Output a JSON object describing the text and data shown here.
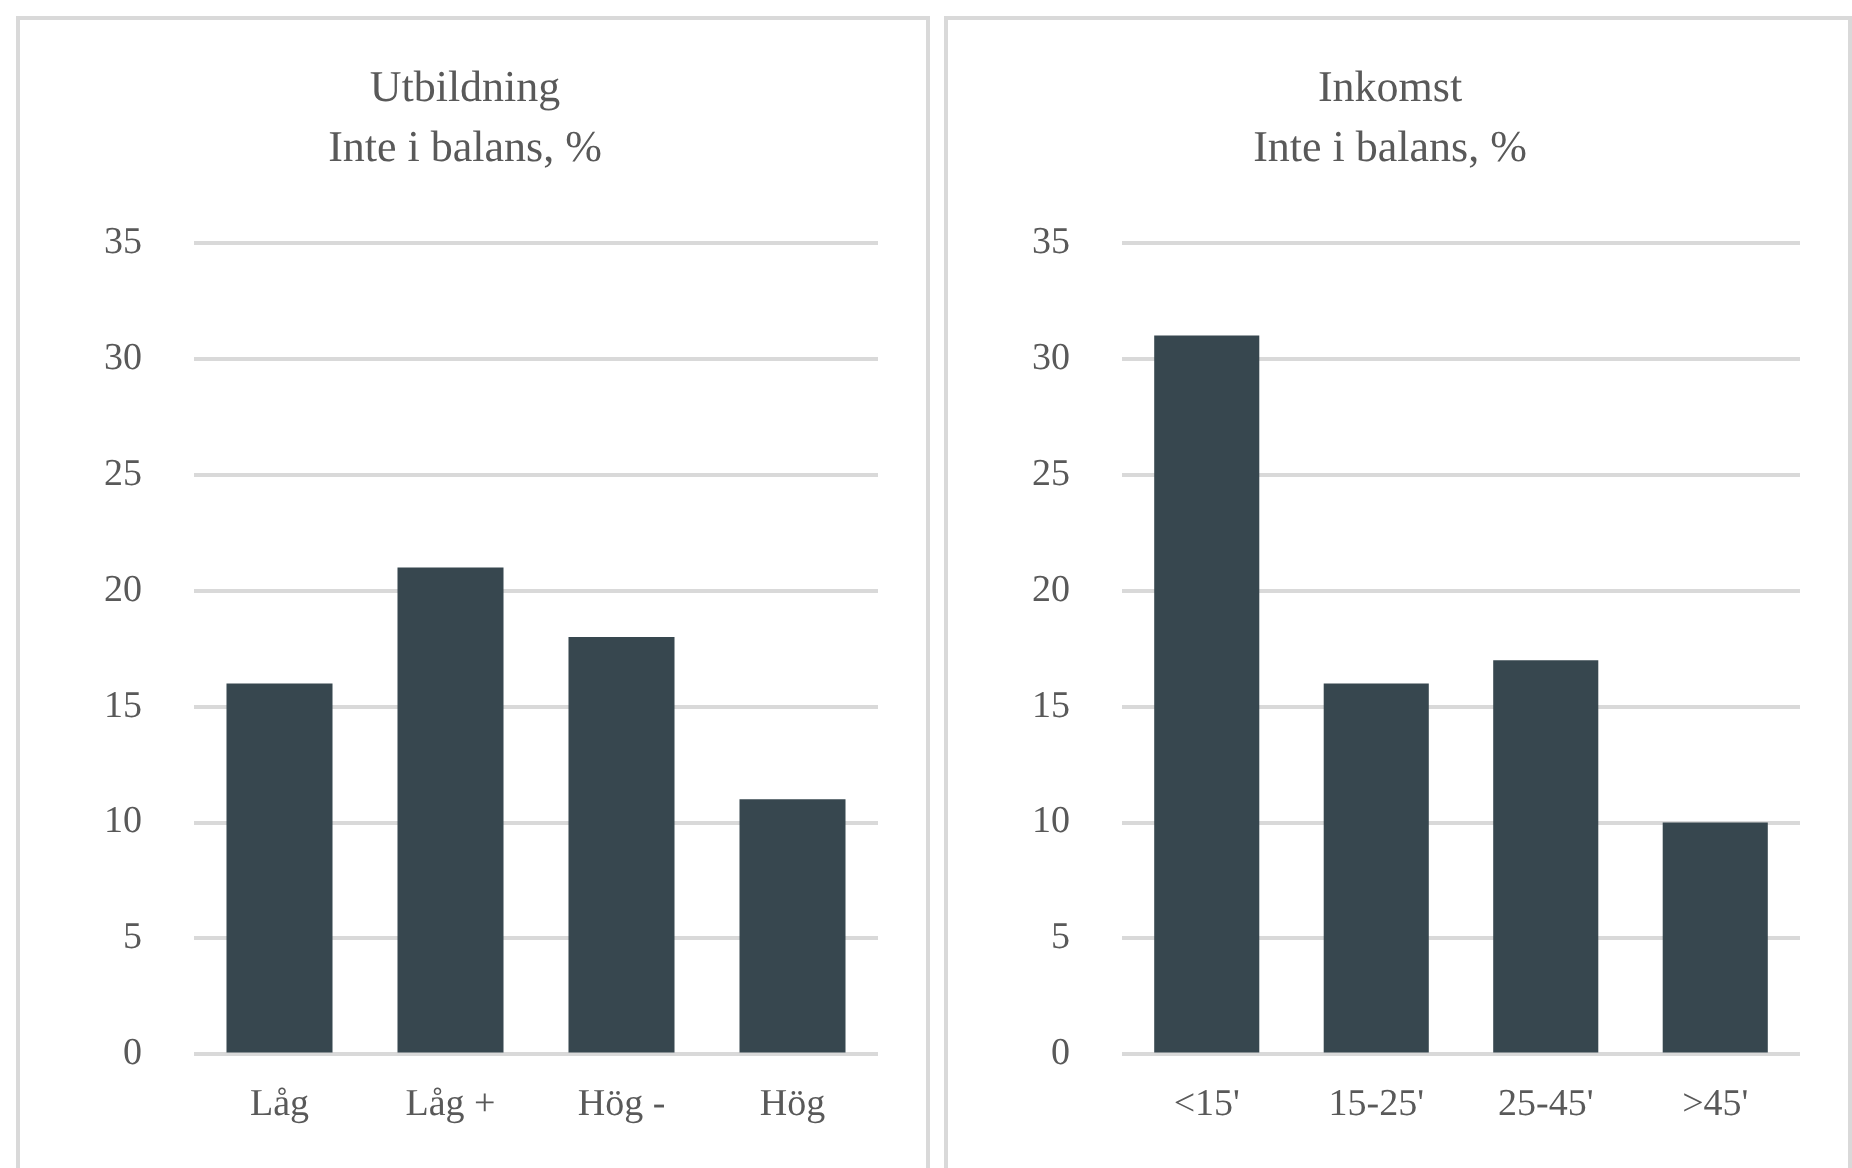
{
  "chart_data": [
    {
      "type": "bar",
      "title": [
        "Utbildning",
        "Inte i balans, %"
      ],
      "categories": [
        "Låg",
        "Låg +",
        "Hög -",
        "Hög"
      ],
      "values": [
        16,
        21,
        18,
        11
      ],
      "color": "#37474f",
      "ylim": [
        0,
        35
      ],
      "yticks": [
        0,
        5,
        10,
        15,
        20,
        25,
        30,
        35
      ],
      "grid": "y",
      "legend": false
    },
    {
      "type": "bar",
      "title": [
        "Inkomst",
        "Inte i balans, %"
      ],
      "categories": [
        "<15'",
        "15-25'",
        "25-45'",
        ">45'"
      ],
      "values": [
        31,
        16,
        17,
        10
      ],
      "color": "#37474f",
      "ylim": [
        0,
        35
      ],
      "yticks": [
        0,
        5,
        10,
        15,
        20,
        25,
        30,
        35
      ],
      "grid": "y",
      "legend": false
    }
  ]
}
